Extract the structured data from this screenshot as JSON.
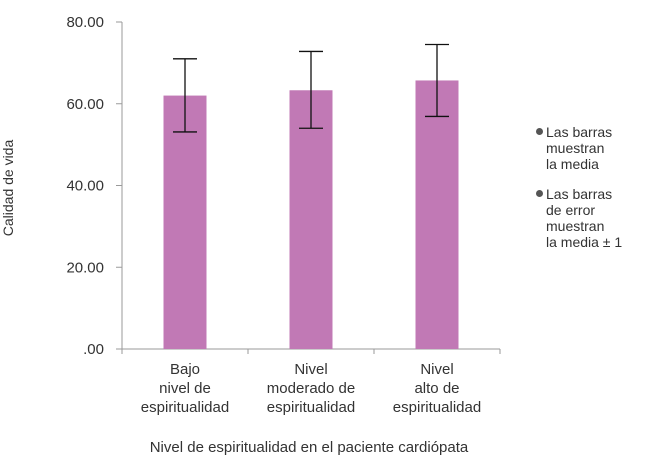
{
  "chart_data": {
    "type": "bar",
    "categories": [
      "Bajo\nnivel de\nespiritualidad",
      "Nivel\nmoderado de\nespiritualidad",
      "Nivel\nalto de\nespiritualidad"
    ],
    "values": [
      62.0,
      63.3,
      65.7
    ],
    "error_low": [
      53.1,
      54.0,
      56.9
    ],
    "error_high": [
      71.0,
      72.8,
      74.5
    ],
    "xlabel": "Nivel de espiritualidad en el paciente cardiópata",
    "ylabel": "Calidad de vida",
    "ylim": [
      0,
      80
    ],
    "yticks": [
      ".00",
      "20.00",
      "40.00",
      "60.00",
      "80.00"
    ],
    "ytick_values": [
      0,
      20,
      40,
      60,
      80
    ],
    "bar_color": "#c179b5",
    "grid": false
  },
  "legend": {
    "items": [
      "Las barras\nmuestran\nla media",
      "Las barras\nde error\nmuestran\nla media ± 1"
    ]
  }
}
